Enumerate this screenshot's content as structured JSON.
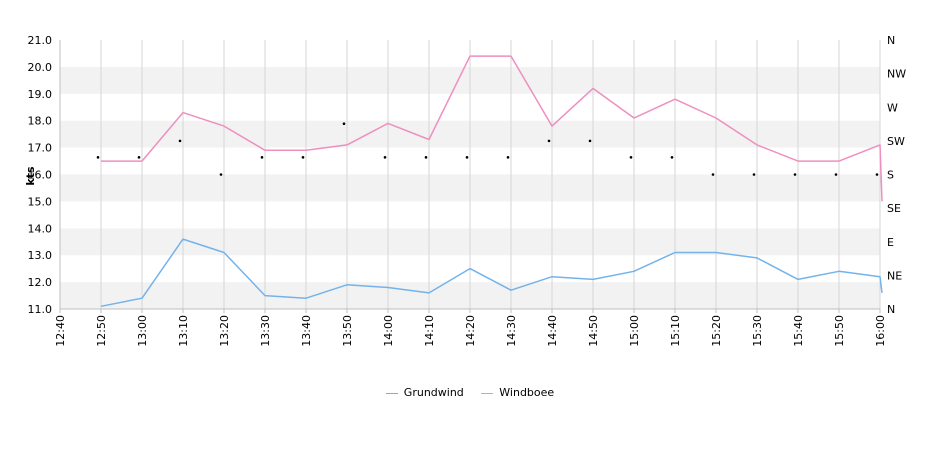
{
  "chart_data": {
    "type": "line",
    "ylabel": "kts",
    "ylim": [
      11,
      21
    ],
    "yticks": [
      "11.0",
      "12.0",
      "13.0",
      "14.0",
      "15.0",
      "16.0",
      "17.0",
      "18.0",
      "19.0",
      "20.0",
      "21.0"
    ],
    "right_axis_labels": [
      "N",
      "NE",
      "E",
      "SE",
      "S",
      "SW",
      "W",
      "NW",
      "N"
    ],
    "x_ticks": [
      "12:40",
      "12:50",
      "13:00",
      "13:10",
      "13:20",
      "13:30",
      "13:40",
      "13:50",
      "14:00",
      "14:10",
      "14:20",
      "14:30",
      "14:40",
      "14:50",
      "15:00",
      "15:10",
      "15:20",
      "15:30",
      "15:40",
      "15:50",
      "16:00"
    ],
    "legend_position": "bottom",
    "grid": true,
    "series": [
      {
        "name": "Grundwind",
        "color": "#74b3ea",
        "x": [
          "12:50",
          "13:00",
          "13:10",
          "13:20",
          "13:30",
          "13:40",
          "13:50",
          "14:00",
          "14:10",
          "14:20",
          "14:30",
          "14:40",
          "14:50",
          "15:00",
          "15:10",
          "15:20",
          "15:30",
          "15:40",
          "15:50",
          "16:00",
          "16:00"
        ],
        "values": [
          11.1,
          11.4,
          13.6,
          13.1,
          11.5,
          11.4,
          11.9,
          11.8,
          11.6,
          12.5,
          11.7,
          12.2,
          12.1,
          12.4,
          13.1,
          13.1,
          12.9,
          12.1,
          12.4,
          12.2,
          11.6
        ]
      },
      {
        "name": "Windboee",
        "color": "#ee8fbf",
        "x": [
          "12:50",
          "13:00",
          "13:10",
          "13:20",
          "13:30",
          "13:40",
          "13:50",
          "14:00",
          "14:10",
          "14:20",
          "14:30",
          "14:40",
          "14:50",
          "15:00",
          "15:10",
          "15:20",
          "15:30",
          "15:40",
          "15:50",
          "16:00",
          "16:00"
        ],
        "values": [
          16.5,
          16.5,
          18.3,
          17.8,
          16.9,
          16.9,
          17.1,
          17.9,
          17.3,
          20.4,
          20.4,
          17.8,
          19.2,
          18.1,
          18.8,
          18.1,
          17.1,
          16.5,
          16.5,
          17.1,
          15.0
        ]
      }
    ],
    "direction_points": {
      "x": [
        "12:50",
        "13:00",
        "13:10",
        "13:20",
        "13:30",
        "13:40",
        "13:50",
        "14:00",
        "14:10",
        "14:20",
        "14:30",
        "14:40",
        "14:50",
        "15:00",
        "15:10",
        "15:20",
        "15:30",
        "15:40",
        "15:50",
        "16:00"
      ],
      "degrees": [
        203,
        203,
        225,
        180,
        203,
        203,
        248,
        203,
        203,
        203,
        203,
        225,
        225,
        203,
        203,
        180,
        180,
        180,
        180,
        180
      ]
    }
  }
}
